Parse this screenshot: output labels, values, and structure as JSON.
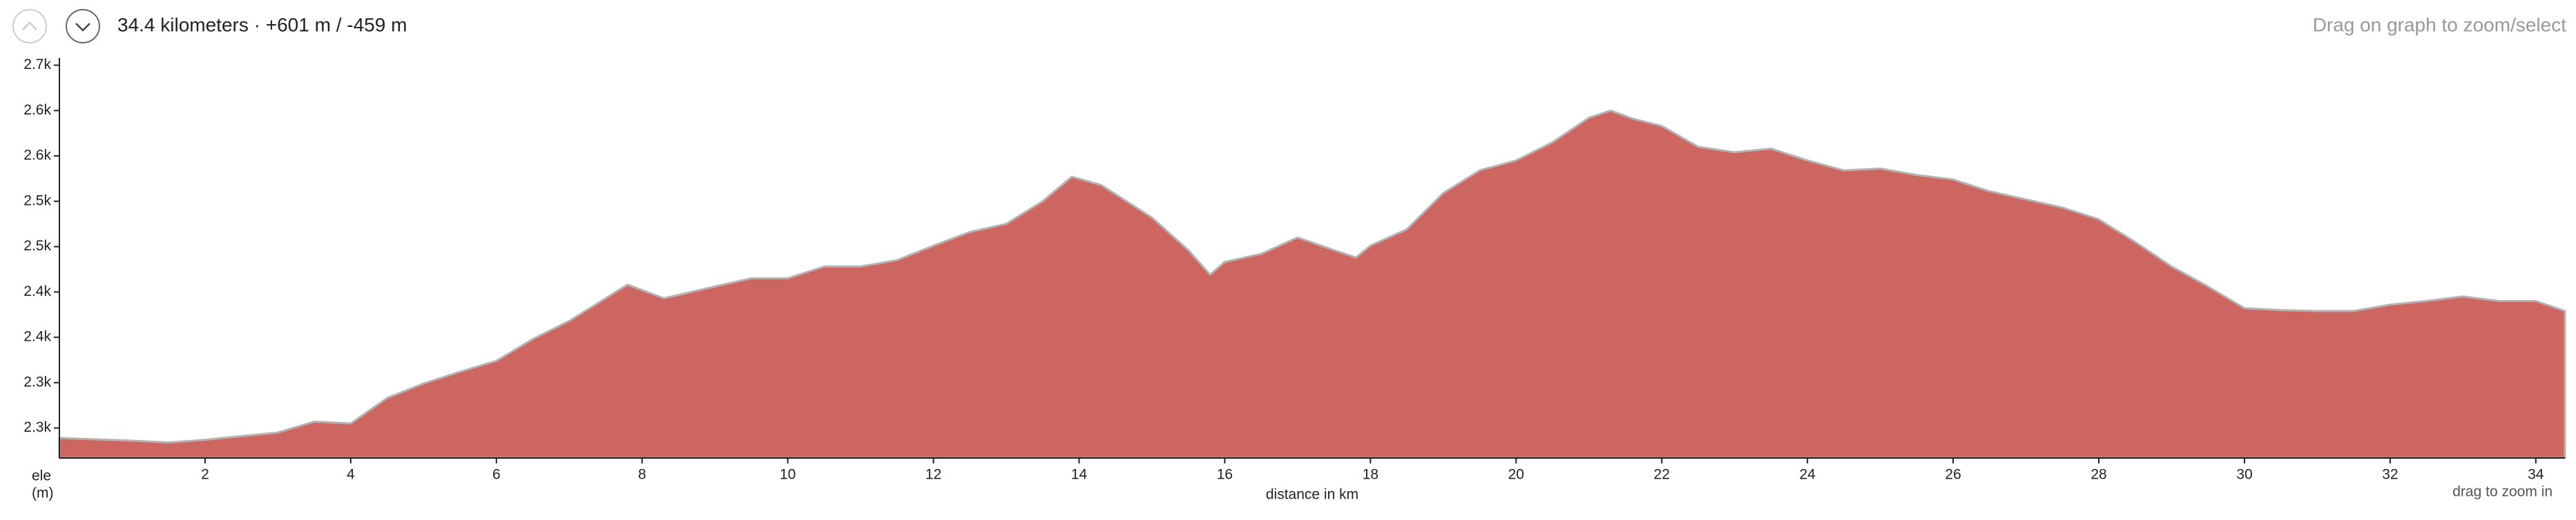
{
  "chart_data": {
    "type": "area",
    "summary": "34.4 kilometers · +601 m / -459 m",
    "hint": "Drag on graph to zoom/select",
    "x_label": "distance in km",
    "y_label": [
      "ele",
      "(m)"
    ],
    "zoom_hint": "drag to zoom in",
    "color": "#cd6560",
    "xlim": [
      0,
      34.4
    ],
    "xticks": [
      2,
      4,
      6,
      8,
      10,
      12,
      14,
      16,
      18,
      20,
      22,
      24,
      26,
      28,
      30,
      32,
      34
    ],
    "ylim": [
      2267,
      2705
    ],
    "yticks": [
      {
        "value": 2700,
        "label": "2.7k"
      },
      {
        "value": 2650,
        "label": "2.6k"
      },
      {
        "value": 2600,
        "label": "2.6k"
      },
      {
        "value": 2550,
        "label": "2.5k"
      },
      {
        "value": 2500,
        "label": "2.5k"
      },
      {
        "value": 2450,
        "label": "2.4k"
      },
      {
        "value": 2400,
        "label": "2.4k"
      },
      {
        "value": 2350,
        "label": "2.3k"
      },
      {
        "value": 2300,
        "label": "2.3k"
      }
    ],
    "x": [
      0,
      1,
      1.5,
      2,
      3,
      3.5,
      4,
      4.5,
      5,
      5.5,
      6,
      6.5,
      7,
      7.5,
      7.8,
      8.3,
      9,
      9.5,
      10,
      10.5,
      11,
      11.5,
      12,
      12.5,
      13,
      13.5,
      13.9,
      14.3,
      15,
      15.5,
      15.8,
      16,
      16.5,
      17,
      17.5,
      17.8,
      18,
      18.5,
      19,
      19.5,
      20,
      20.5,
      21,
      21.3,
      21.6,
      22,
      22.5,
      23,
      23.5,
      24,
      24.5,
      25,
      25.5,
      26,
      26.5,
      27,
      27.5,
      28,
      28.5,
      29,
      29.5,
      30,
      30.5,
      31,
      31.5,
      32,
      32.5,
      33,
      33.5,
      34,
      34.4
    ],
    "values": [
      2289,
      2286,
      2284,
      2287,
      2295,
      2307,
      2305,
      2333,
      2349,
      2362,
      2374,
      2398,
      2418,
      2443,
      2458,
      2443,
      2456,
      2465,
      2465,
      2478,
      2478,
      2485,
      2501,
      2516,
      2525,
      2550,
      2577,
      2568,
      2532,
      2496,
      2469,
      2483,
      2492,
      2510,
      2496,
      2488,
      2501,
      2519,
      2559,
      2584,
      2595,
      2615,
      2642,
      2650,
      2641,
      2633,
      2610,
      2604,
      2608,
      2595,
      2584,
      2586,
      2579,
      2574,
      2561,
      2552,
      2543,
      2530,
      2505,
      2478,
      2456,
      2432,
      2430,
      2429,
      2429,
      2436,
      2440,
      2445,
      2440,
      2440,
      2429
    ]
  }
}
